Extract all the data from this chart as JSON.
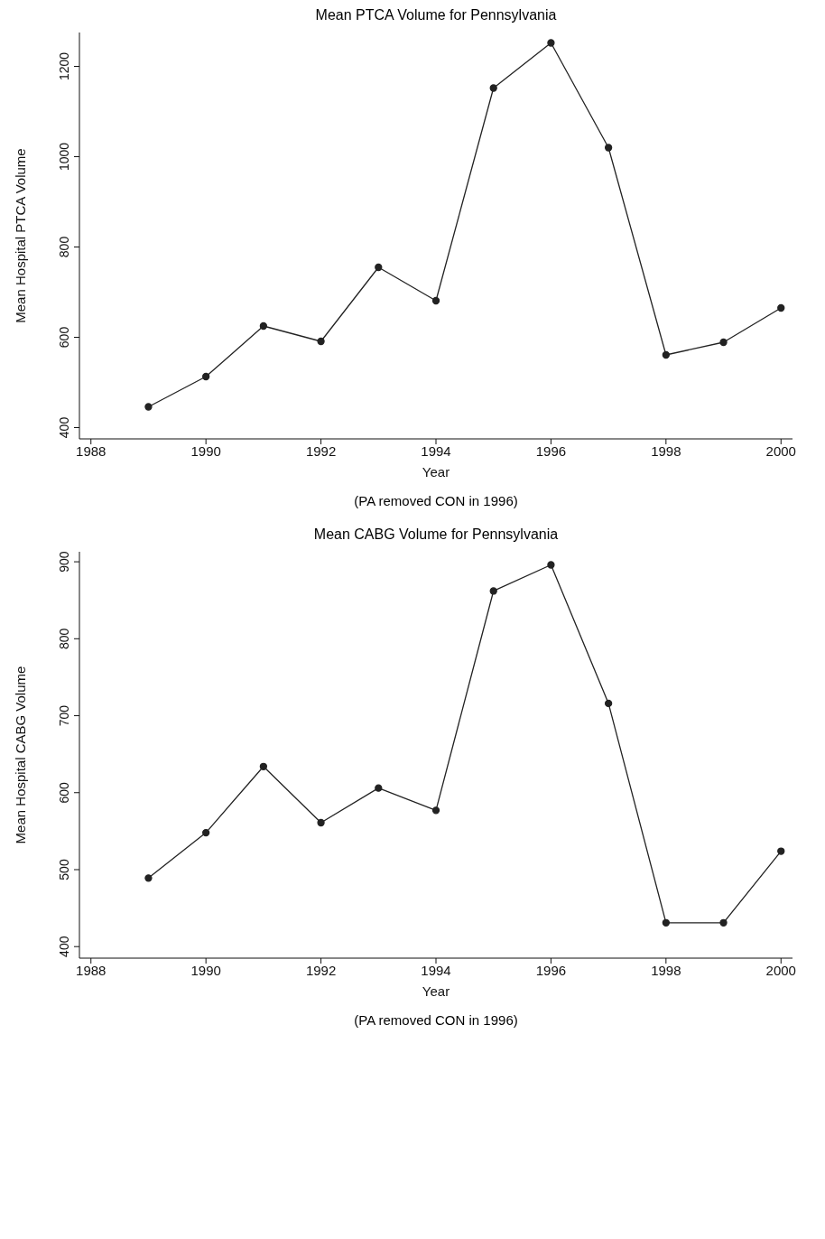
{
  "chart_data": [
    {
      "type": "line",
      "title": "Mean PTCA Volume for Pennsylvania",
      "xlabel": "Year",
      "ylabel": "Mean Hospital PTCA Volume",
      "annotations": [
        "(PA removed CON in 1996)"
      ],
      "x": [
        1989,
        1990,
        1991,
        1992,
        1993,
        1994,
        1995,
        1996,
        1997,
        1998,
        1999,
        2000
      ],
      "series": [
        {
          "color": "#222222",
          "values": [
            446,
            513,
            625,
            591,
            755,
            681,
            1152,
            1252,
            1020,
            561,
            589,
            665
          ]
        }
      ],
      "xlim": [
        1987.8,
        2000.2
      ],
      "xticks": [
        1988,
        1990,
        1992,
        1994,
        1996,
        1998,
        2000
      ],
      "ylim": [
        375,
        1275
      ],
      "yticks": [
        400,
        600,
        800,
        1000,
        1200
      ],
      "grid": false,
      "legend": false,
      "marker": "circle",
      "line_style": "solid"
    },
    {
      "type": "line",
      "title": "Mean CABG Volume for Pennsylvania",
      "xlabel": "Year",
      "ylabel": "Mean Hospital CABG Volume",
      "annotations": [
        "(PA removed CON in 1996)"
      ],
      "x": [
        1989,
        1990,
        1991,
        1992,
        1993,
        1994,
        1995,
        1996,
        1997,
        1998,
        1999,
        2000
      ],
      "series": [
        {
          "color": "#222222",
          "values": [
            489,
            548,
            634,
            561,
            606,
            577,
            862,
            896,
            716,
            431,
            431,
            524
          ]
        }
      ],
      "xlim": [
        1987.8,
        2000.2
      ],
      "xticks": [
        1988,
        1990,
        1992,
        1994,
        1996,
        1998,
        2000
      ],
      "ylim": [
        385,
        913
      ],
      "yticks": [
        400,
        500,
        600,
        700,
        800,
        900
      ],
      "grid": false,
      "legend": false,
      "marker": "circle",
      "line_style": "solid"
    }
  ]
}
